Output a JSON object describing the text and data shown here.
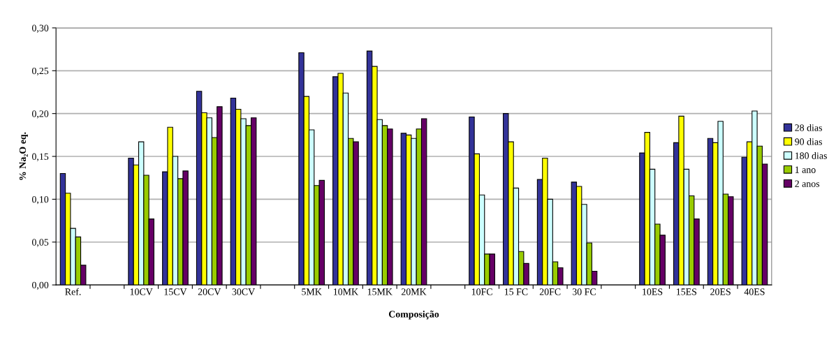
{
  "chart_data": {
    "type": "bar",
    "xlabel": "Composição",
    "ylabel": "% Na₂O eq.",
    "categories": [
      "Ref.",
      null,
      "10CV",
      "15CV",
      "20CV",
      "30CV",
      null,
      "5MK",
      "10MK",
      "15MK",
      "20MK",
      null,
      "10FC",
      "15 FC",
      "20FC",
      "30 FC",
      null,
      "10ES",
      "15ES",
      "20ES",
      "40ES"
    ],
    "series": [
      {
        "name": "28 dias",
        "color": "#333399",
        "values": [
          0.13,
          null,
          0.148,
          0.132,
          0.226,
          0.218,
          null,
          0.271,
          0.243,
          0.273,
          0.177,
          null,
          0.196,
          0.2,
          0.123,
          0.12,
          null,
          0.154,
          0.166,
          0.171,
          0.149
        ]
      },
      {
        "name": "90 dias",
        "color": "#ffff00",
        "values": [
          0.107,
          null,
          0.14,
          0.184,
          0.201,
          0.205,
          null,
          0.22,
          0.247,
          0.255,
          0.175,
          null,
          0.153,
          0.167,
          0.148,
          0.115,
          null,
          0.178,
          0.197,
          0.166,
          0.167
        ]
      },
      {
        "name": "180 dias",
        "color": "#ccffff",
        "values": [
          0.066,
          null,
          0.167,
          0.15,
          0.195,
          0.194,
          null,
          0.181,
          0.224,
          0.193,
          0.171,
          null,
          0.105,
          0.113,
          0.1,
          0.094,
          null,
          0.135,
          0.135,
          0.191,
          0.203
        ]
      },
      {
        "name": "1 ano",
        "color": "#99cc00",
        "values": [
          0.056,
          null,
          0.128,
          0.124,
          0.172,
          0.186,
          null,
          0.116,
          0.171,
          0.186,
          0.182,
          null,
          0.036,
          0.039,
          0.027,
          0.049,
          null,
          0.071,
          0.104,
          0.106,
          0.162
        ]
      },
      {
        "name": "2 anos",
        "color": "#660066",
        "values": [
          0.023,
          null,
          0.077,
          0.133,
          0.208,
          0.195,
          null,
          0.122,
          0.167,
          0.182,
          0.194,
          null,
          0.036,
          0.025,
          0.02,
          0.016,
          null,
          0.058,
          0.077,
          0.103,
          0.141
        ]
      }
    ],
    "ylim": [
      0,
      0.3
    ],
    "yticks": [
      {
        "value": 0,
        "label": "0,00"
      },
      {
        "value": 0.05,
        "label": "0,05"
      },
      {
        "value": 0.1,
        "label": "0,10"
      },
      {
        "value": 0.15,
        "label": "0,15"
      },
      {
        "value": 0.2,
        "label": "0,20"
      },
      {
        "value": 0.25,
        "label": "0,25"
      },
      {
        "value": 0.3,
        "label": "0,30"
      }
    ],
    "grid": "y",
    "legend": "right"
  }
}
